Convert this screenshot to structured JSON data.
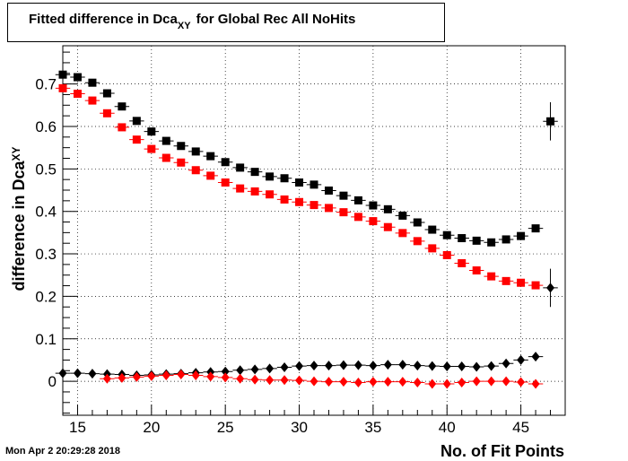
{
  "title": {
    "main": "Fitted difference in Dca",
    "sub": "XY",
    "rest": "for Global Rec All NoHits"
  },
  "timestamp": "Mon Apr  2 20:29:28 2018",
  "chart_data": {
    "type": "scatter",
    "title": "Fitted difference in Dca_XY for Global Rec All NoHits",
    "xlabel": "No. of Fit Points",
    "ylabel": "difference in Dca_XY",
    "xlim": [
      14,
      48
    ],
    "ylim": [
      -0.08,
      0.79
    ],
    "xticks": [
      15,
      20,
      25,
      30,
      35,
      40,
      45
    ],
    "yticks": [
      0,
      0.1,
      0.2,
      0.3,
      0.4,
      0.5,
      0.6,
      0.7
    ],
    "grid": true,
    "series": [
      {
        "color": "#000000",
        "marker": "square",
        "x": [
          14,
          15,
          16,
          17,
          18,
          19,
          20,
          21,
          22,
          23,
          24,
          25,
          26,
          27,
          28,
          29,
          30,
          31,
          32,
          33,
          34,
          35,
          36,
          37,
          38,
          39,
          40,
          41,
          42,
          43,
          44,
          45,
          46,
          47
        ],
        "values": [
          0.722,
          0.716,
          0.703,
          0.678,
          0.647,
          0.613,
          0.588,
          0.566,
          0.554,
          0.541,
          0.53,
          0.516,
          0.503,
          0.493,
          0.482,
          0.478,
          0.468,
          0.463,
          0.449,
          0.437,
          0.426,
          0.414,
          0.405,
          0.39,
          0.374,
          0.357,
          0.344,
          0.337,
          0.331,
          0.327,
          0.334,
          0.342,
          0.36,
          0.612
        ],
        "errors": [
          0,
          0,
          0,
          0,
          0,
          0,
          0,
          0,
          0,
          0,
          0,
          0,
          0,
          0,
          0,
          0,
          0,
          0,
          0,
          0,
          0,
          0,
          0,
          0,
          0,
          0,
          0,
          0,
          0,
          0,
          0,
          0,
          0,
          0.045
        ]
      },
      {
        "color": "#ff0000",
        "marker": "square",
        "x": [
          14,
          15,
          16,
          17,
          18,
          19,
          20,
          21,
          22,
          23,
          24,
          25,
          26,
          27,
          28,
          29,
          30,
          31,
          32,
          33,
          34,
          35,
          36,
          37,
          38,
          39,
          40,
          41,
          42,
          43,
          44,
          45,
          46
        ],
        "values": [
          0.69,
          0.677,
          0.661,
          0.631,
          0.598,
          0.569,
          0.547,
          0.526,
          0.515,
          0.497,
          0.484,
          0.468,
          0.454,
          0.447,
          0.44,
          0.428,
          0.422,
          0.415,
          0.408,
          0.398,
          0.387,
          0.377,
          0.363,
          0.349,
          0.33,
          0.313,
          0.297,
          0.278,
          0.261,
          0.247,
          0.236,
          0.232,
          0.226
        ]
      },
      {
        "color": "#000000",
        "marker": "diamond",
        "x": [
          14,
          15,
          16,
          17,
          18,
          19,
          20,
          21,
          22,
          23,
          24,
          25,
          26,
          27,
          28,
          29,
          30,
          31,
          32,
          33,
          34,
          35,
          36,
          37,
          38,
          39,
          40,
          41,
          42,
          43,
          44,
          45,
          46,
          47
        ],
        "values": [
          0.019,
          0.019,
          0.018,
          0.017,
          0.016,
          0.014,
          0.015,
          0.017,
          0.018,
          0.02,
          0.022,
          0.023,
          0.026,
          0.028,
          0.03,
          0.033,
          0.036,
          0.037,
          0.037,
          0.038,
          0.038,
          0.037,
          0.039,
          0.039,
          0.037,
          0.036,
          0.035,
          0.035,
          0.034,
          0.036,
          0.042,
          0.05,
          0.058,
          0.22
        ],
        "errors": [
          0,
          0,
          0,
          0,
          0,
          0,
          0,
          0,
          0,
          0,
          0,
          0,
          0,
          0,
          0,
          0,
          0,
          0,
          0,
          0,
          0,
          0,
          0,
          0,
          0,
          0,
          0,
          0,
          0,
          0,
          0,
          0,
          0,
          0.045
        ]
      },
      {
        "color": "#ff0000",
        "marker": "diamond",
        "x": [
          17,
          18,
          19,
          20,
          21,
          22,
          23,
          24,
          25,
          26,
          27,
          28,
          29,
          30,
          31,
          32,
          33,
          34,
          35,
          36,
          37,
          38,
          39,
          40,
          41,
          42,
          43,
          44,
          45,
          46
        ],
        "values": [
          0.006,
          0.008,
          0.01,
          0.012,
          0.014,
          0.016,
          0.014,
          0.011,
          0.009,
          0.006,
          0.004,
          0.003,
          0.003,
          0.002,
          0.0,
          -0.001,
          -0.001,
          -0.003,
          -0.001,
          -0.001,
          -0.001,
          -0.003,
          -0.006,
          -0.006,
          -0.003,
          0.0,
          0.0,
          0.0,
          -0.002,
          -0.006
        ]
      }
    ]
  }
}
